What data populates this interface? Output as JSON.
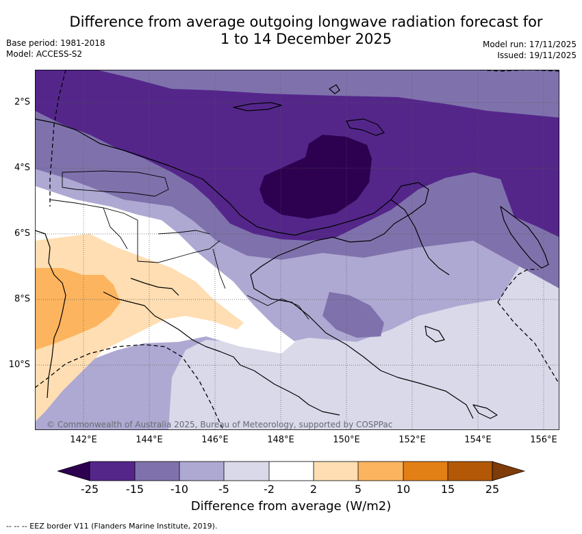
{
  "header": {
    "title_line1": "Difference from average outgoing longwave radiation forecast for",
    "title_line2": "1 to 14 December 2025",
    "base_period": "Base period: 1981-2018",
    "model": "Model: ACCESS-S2",
    "model_run": "Model run: 17/11/2025",
    "issued": "Issued: 19/11/2025"
  },
  "axes": {
    "lat_labels": [
      "2°S",
      "4°S",
      "6°S",
      "8°S",
      "10°S"
    ],
    "lon_labels": [
      "142°E",
      "144°E",
      "146°E",
      "148°E",
      "150°E",
      "152°E",
      "154°E",
      "156°E"
    ]
  },
  "copyright": "© Commonwealth of Australia 2025, Bureau of Meteorology, supported by COSPPac",
  "colorbar": {
    "label": "Difference from average (W/m2)",
    "ticks": [
      "-25",
      "-15",
      "-10",
      "-5",
      "-2",
      "2",
      "5",
      "10",
      "15",
      "25"
    ],
    "colors": [
      "#2d0050",
      "#54268a",
      "#7f72ac",
      "#aea9d2",
      "#d9d9ea",
      "#ffffff",
      "#fedeb2",
      "#fdb45e",
      "#e27f15",
      "#b35806",
      "#7f3b08"
    ]
  },
  "legend": {
    "eez": "--  --  -- EEZ border V11 (Flanders Marine Institute, 2019)."
  }
}
